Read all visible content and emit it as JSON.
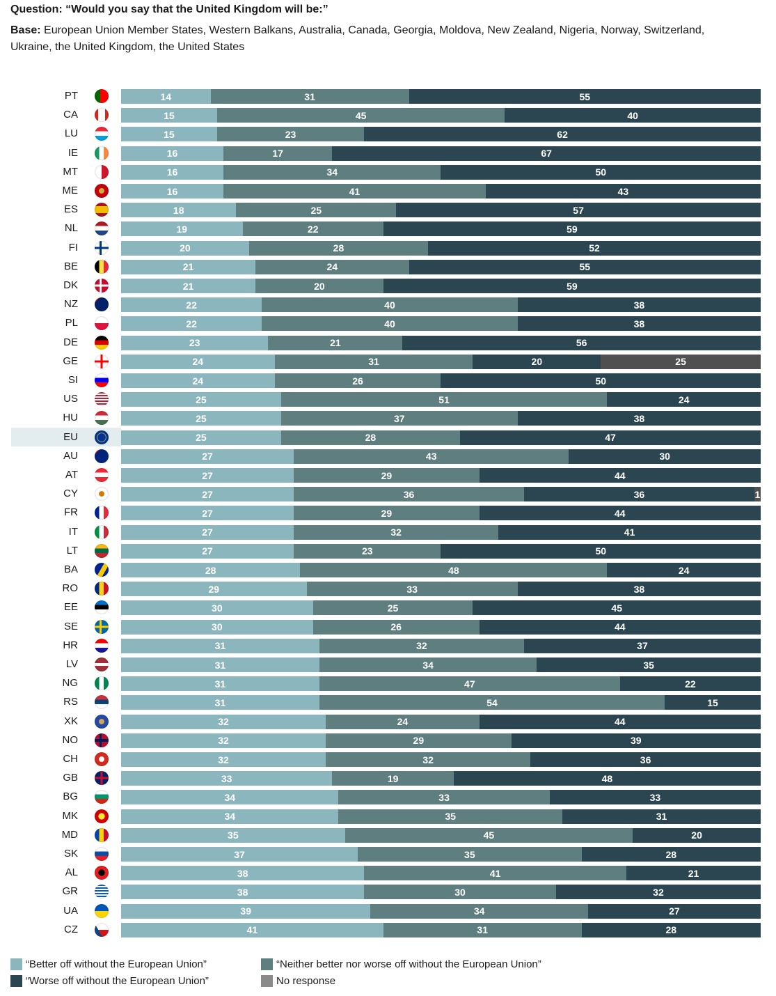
{
  "header": {
    "question_label": "Question:",
    "question_text": "“Would you say that the United Kingdom will be:”",
    "base_label": "Base:",
    "base_text": "European Union Member States, Western Balkans, Australia, Canada, Georgia, Moldova, New Zealand, Nigeria, Norway, Switzerland, Ukraine, the United Kingdom, the United States"
  },
  "colors": {
    "better": "#8cb6bd",
    "neither": "#5f7e7f",
    "worse": "#2b4650",
    "no_response": "#505050",
    "highlight_row": "#e3ecee"
  },
  "chart_data": {
    "type": "bar",
    "orientation": "horizontal-stacked-100",
    "title": "Would you say that the United Kingdom will be:",
    "xlabel": "",
    "ylabel": "",
    "xlim": [
      0,
      100
    ],
    "grid": false,
    "legend_position": "bottom-left",
    "highlighted_category": "EU",
    "categories": [
      "PT",
      "CA",
      "LU",
      "IE",
      "MT",
      "ME",
      "ES",
      "NL",
      "FI",
      "BE",
      "DK",
      "NZ",
      "PL",
      "DE",
      "GE",
      "SI",
      "US",
      "HU",
      "EU",
      "AU",
      "AT",
      "CY",
      "FR",
      "IT",
      "LT",
      "BA",
      "RO",
      "EE",
      "SE",
      "HR",
      "LV",
      "NG",
      "RS",
      "XK",
      "NO",
      "CH",
      "GB",
      "BG",
      "MK",
      "MD",
      "SK",
      "AL",
      "GR",
      "UA",
      "CZ"
    ],
    "series": [
      {
        "name": "“Better off without the European Union”",
        "key": "better",
        "values": [
          14,
          15,
          15,
          16,
          16,
          16,
          18,
          19,
          20,
          21,
          21,
          22,
          22,
          23,
          24,
          24,
          25,
          25,
          25,
          27,
          27,
          27,
          27,
          27,
          27,
          28,
          29,
          30,
          30,
          31,
          31,
          31,
          31,
          32,
          32,
          32,
          33,
          34,
          34,
          35,
          37,
          38,
          38,
          39,
          41
        ]
      },
      {
        "name": "“Neither better nor worse off without the European Union”",
        "key": "neither",
        "values": [
          31,
          45,
          23,
          17,
          34,
          41,
          25,
          22,
          28,
          24,
          20,
          40,
          40,
          21,
          31,
          26,
          51,
          37,
          28,
          43,
          29,
          36,
          29,
          32,
          23,
          48,
          33,
          25,
          26,
          32,
          34,
          47,
          54,
          24,
          29,
          32,
          19,
          33,
          35,
          45,
          35,
          41,
          30,
          34,
          31
        ]
      },
      {
        "name": "“Worse off without the European Union”",
        "key": "worse",
        "values": [
          55,
          40,
          62,
          67,
          50,
          43,
          57,
          59,
          52,
          55,
          59,
          38,
          38,
          56,
          20,
          50,
          24,
          38,
          47,
          30,
          44,
          36,
          44,
          41,
          50,
          24,
          38,
          45,
          44,
          37,
          35,
          22,
          15,
          44,
          39,
          36,
          48,
          33,
          31,
          20,
          28,
          21,
          32,
          27,
          28
        ]
      },
      {
        "name": "No response",
        "key": "no_response",
        "values": [
          0,
          0,
          0,
          0,
          0,
          0,
          0,
          0,
          0,
          0,
          0,
          0,
          0,
          0,
          25,
          0,
          0,
          0,
          0,
          0,
          0,
          1,
          0,
          0,
          0,
          0,
          0,
          0,
          0,
          0,
          0,
          0,
          0,
          0,
          0,
          0,
          0,
          0,
          0,
          0,
          0,
          0,
          0,
          0,
          0
        ]
      }
    ]
  },
  "flags": {
    "PT": "portugal-flag-icon",
    "CA": "canada-flag-icon",
    "LU": "luxembourg-flag-icon",
    "IE": "ireland-flag-icon",
    "MT": "malta-flag-icon",
    "ME": "montenegro-flag-icon",
    "ES": "spain-flag-icon",
    "NL": "netherlands-flag-icon",
    "FI": "finland-flag-icon",
    "BE": "belgium-flag-icon",
    "DK": "denmark-flag-icon",
    "NZ": "new-zealand-flag-icon",
    "PL": "poland-flag-icon",
    "DE": "germany-flag-icon",
    "GE": "georgia-flag-icon",
    "SI": "slovenia-flag-icon",
    "US": "united-states-flag-icon",
    "HU": "hungary-flag-icon",
    "EU": "european-union-flag-icon",
    "AU": "australia-flag-icon",
    "AT": "austria-flag-icon",
    "CY": "cyprus-flag-icon",
    "FR": "france-flag-icon",
    "IT": "italy-flag-icon",
    "LT": "lithuania-flag-icon",
    "BA": "bosnia-flag-icon",
    "RO": "romania-flag-icon",
    "EE": "estonia-flag-icon",
    "SE": "sweden-flag-icon",
    "HR": "croatia-flag-icon",
    "LV": "latvia-flag-icon",
    "NG": "nigeria-flag-icon",
    "RS": "serbia-flag-icon",
    "XK": "kosovo-flag-icon",
    "NO": "norway-flag-icon",
    "CH": "switzerland-flag-icon",
    "GB": "united-kingdom-flag-icon",
    "BG": "bulgaria-flag-icon",
    "MK": "north-macedonia-flag-icon",
    "MD": "moldova-flag-icon",
    "SK": "slovakia-flag-icon",
    "AL": "albania-flag-icon",
    "GR": "greece-flag-icon",
    "UA": "ukraine-flag-icon",
    "CZ": "czechia-flag-icon"
  },
  "legend": [
    {
      "key": "better",
      "label": "“Better off without the European Union”"
    },
    {
      "key": "neither",
      "label": "“Neither better nor worse off without the European Union”"
    },
    {
      "key": "worse",
      "label": "“Worse off without the European Union”"
    },
    {
      "key": "no_response_legend",
      "label": "No response"
    }
  ]
}
